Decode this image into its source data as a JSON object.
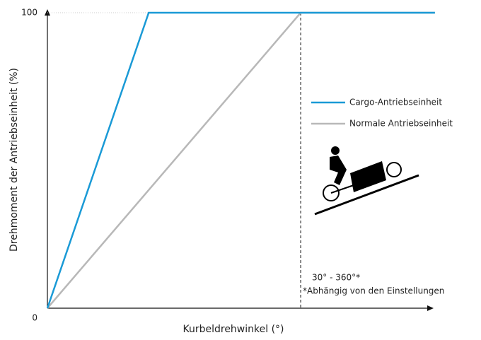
{
  "chart_data": {
    "type": "line",
    "x_label": "Kurbeldrehwinkel (°)",
    "y_label": "Drehmoment der Antriebseinheit (%)",
    "x": [
      0,
      40,
      100,
      153
    ],
    "xlim": [
      0,
      155
    ],
    "ylim": [
      0,
      100
    ],
    "yticks": [
      0,
      100
    ],
    "reference_line_x": 100,
    "series": [
      {
        "name": "Cargo-Antriebseinheit",
        "color": "#1a9ad6",
        "values": [
          0,
          100,
          100,
          100
        ]
      },
      {
        "name": "Normale Antriebseinheit",
        "color": "#b8b8b8",
        "values": [
          0,
          40,
          100,
          100
        ]
      }
    ],
    "annotations": [
      "30° - 360°*",
      "*Abhängig von den Einstellungen"
    ],
    "legend": "right"
  }
}
